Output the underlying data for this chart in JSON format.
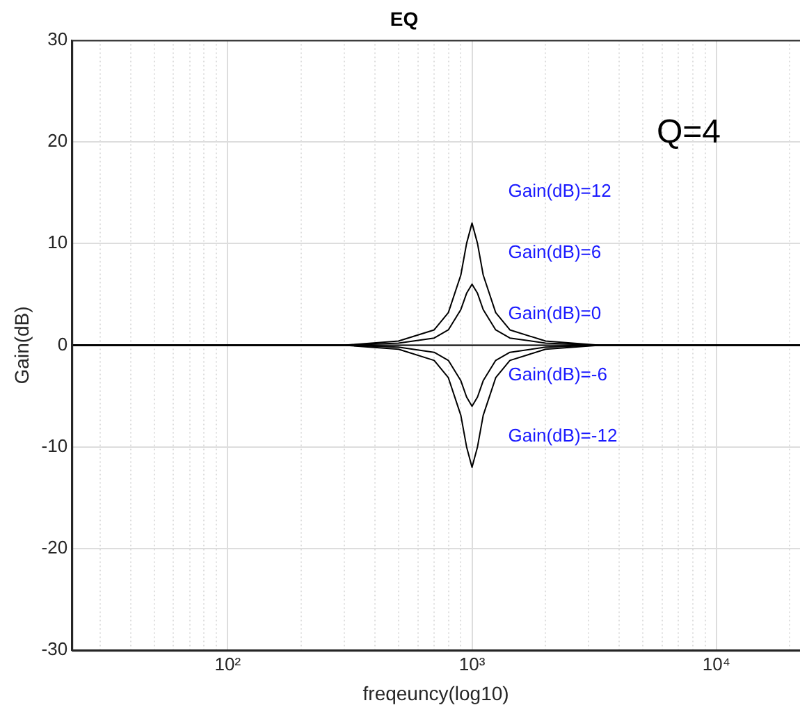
{
  "chart_data": {
    "type": "line",
    "title": "EQ",
    "xlabel": "freqeuncy(log10)",
    "ylabel": "Gain(dB)",
    "log": "x",
    "grid": true,
    "legend": false,
    "annotations": [
      "Q=4",
      "Gain(dB)=12",
      "Gain(dB)=6",
      "Gain(dB)=0",
      "Gain(dB)=-6",
      "Gain(dB)=-12"
    ],
    "xlim": [
      23,
      22000
    ],
    "xticks": [
      {
        "value": 30,
        "label": null
      },
      {
        "value": 40,
        "label": null
      },
      {
        "value": 50,
        "label": null
      },
      {
        "value": 60,
        "label": null
      },
      {
        "value": 70,
        "label": null
      },
      {
        "value": 80,
        "label": null
      },
      {
        "value": 90,
        "label": null
      },
      {
        "value": 100,
        "label": "10²"
      },
      {
        "value": 200,
        "label": null
      },
      {
        "value": 300,
        "label": null
      },
      {
        "value": 400,
        "label": null
      },
      {
        "value": 500,
        "label": null
      },
      {
        "value": 600,
        "label": null
      },
      {
        "value": 700,
        "label": null
      },
      {
        "value": 800,
        "label": null
      },
      {
        "value": 900,
        "label": null
      },
      {
        "value": 1000,
        "label": "10³"
      },
      {
        "value": 2000,
        "label": null
      },
      {
        "value": 3000,
        "label": null
      },
      {
        "value": 4000,
        "label": null
      },
      {
        "value": 5000,
        "label": null
      },
      {
        "value": 6000,
        "label": null
      },
      {
        "value": 7000,
        "label": null
      },
      {
        "value": 8000,
        "label": null
      },
      {
        "value": 9000,
        "label": null
      },
      {
        "value": 10000,
        "label": "10⁴"
      },
      {
        "value": 20000,
        "label": null
      }
    ],
    "ylim": [
      -30,
      30
    ],
    "yticks": [
      -30,
      -20,
      -10,
      0,
      10,
      20,
      30
    ],
    "x": [
      23,
      300,
      500,
      700,
      800,
      900,
      950,
      1000,
      1053,
      1111,
      1250,
      1429,
      2000,
      3333,
      22000
    ],
    "series": [
      {
        "color": "#000000",
        "values": [
          0,
          0,
          0.4,
          1.5,
          3.2,
          6.9,
          10,
          12,
          10,
          6.9,
          3.2,
          1.5,
          0.4,
          0,
          0
        ]
      },
      {
        "color": "#000000",
        "values": [
          0,
          0,
          0.2,
          0.7,
          1.5,
          3.5,
          5.1,
          6,
          5.1,
          3.5,
          1.5,
          0.7,
          0.2,
          0,
          0
        ]
      },
      {
        "color": "#000000",
        "values": [
          0,
          0,
          0,
          0,
          0,
          0,
          0,
          0,
          0,
          0,
          0,
          0,
          0,
          0,
          0
        ]
      },
      {
        "color": "#000000",
        "values": [
          0,
          0,
          -0.2,
          -0.7,
          -1.5,
          -3.5,
          -5.1,
          -6,
          -5.1,
          -3.5,
          -1.5,
          -0.7,
          -0.2,
          0,
          0
        ]
      },
      {
        "color": "#000000",
        "values": [
          0,
          0,
          -0.4,
          -1.5,
          -3.2,
          -6.9,
          -10,
          -12,
          -10,
          -6.9,
          -3.2,
          -1.5,
          -0.4,
          0,
          0
        ]
      }
    ]
  }
}
